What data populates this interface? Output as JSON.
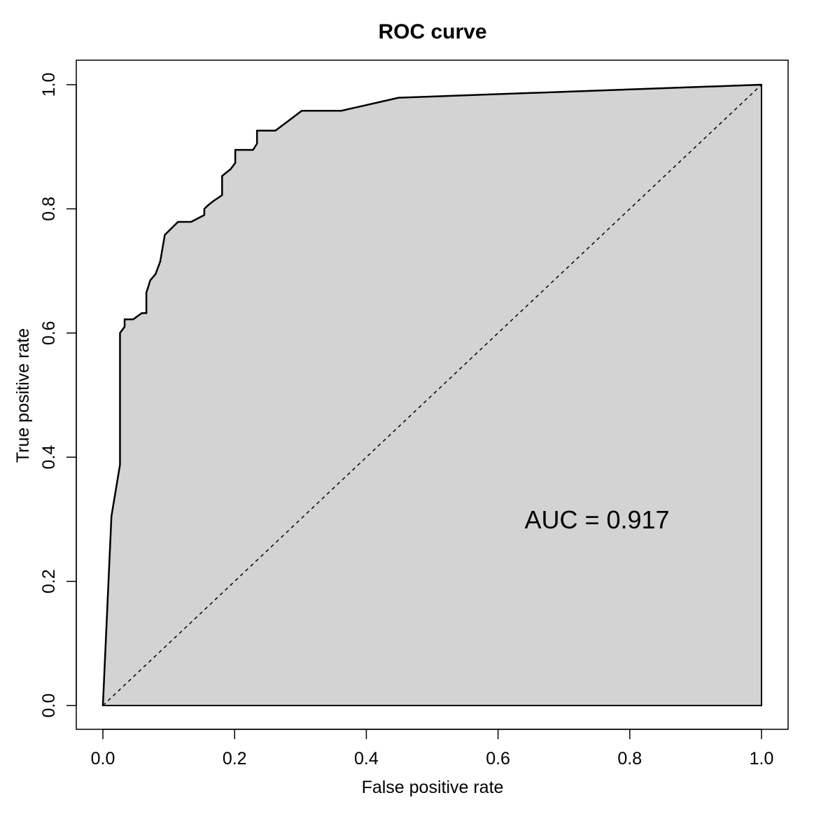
{
  "chart_data": {
    "type": "area",
    "title": "ROC curve",
    "xlabel": "False positive rate",
    "ylabel": "True positive rate",
    "xlim": [
      0,
      1
    ],
    "ylim": [
      0,
      1
    ],
    "x_ticks": [
      "0.0",
      "0.2",
      "0.4",
      "0.6",
      "0.8",
      "1.0"
    ],
    "y_ticks": [
      "0.0",
      "0.2",
      "0.4",
      "0.6",
      "0.8",
      "1.0"
    ],
    "grid": false,
    "annotation": "AUC = 0.917",
    "fill_color": "#d3d3d3",
    "line_color": "#000000",
    "reference_line": {
      "style": "dashed",
      "x": [
        0,
        1
      ],
      "y": [
        0,
        1
      ]
    },
    "series": [
      {
        "x": [
          0.0,
          0.013,
          0.026,
          0.026,
          0.033,
          0.033,
          0.046,
          0.059,
          0.066,
          0.066,
          0.072,
          0.08,
          0.087,
          0.094,
          0.114,
          0.134,
          0.154,
          0.154,
          0.16,
          0.167,
          0.181,
          0.181,
          0.194,
          0.201,
          0.201,
          0.228,
          0.234,
          0.234,
          0.262,
          0.302,
          0.362,
          0.449,
          1.0
        ],
        "y": [
          0.0,
          0.305,
          0.388,
          0.6,
          0.61,
          0.622,
          0.622,
          0.632,
          0.632,
          0.665,
          0.685,
          0.695,
          0.715,
          0.758,
          0.779,
          0.779,
          0.79,
          0.8,
          0.806,
          0.812,
          0.822,
          0.853,
          0.864,
          0.874,
          0.895,
          0.895,
          0.905,
          0.926,
          0.926,
          0.958,
          0.958,
          0.979,
          1.0
        ]
      }
    ]
  }
}
